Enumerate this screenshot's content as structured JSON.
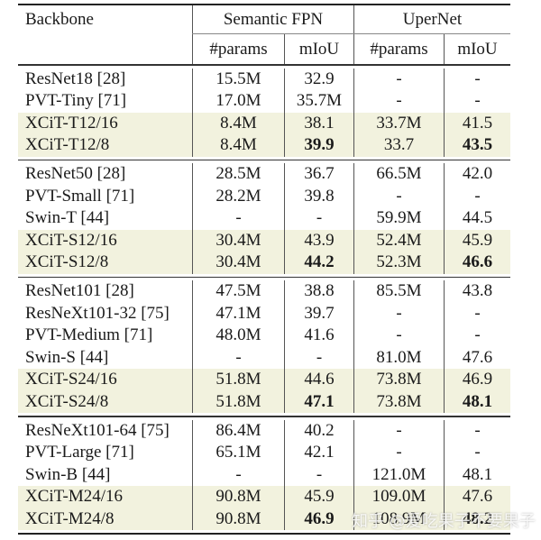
{
  "header": {
    "backbone": "Backbone",
    "group1": "Semantic FPN",
    "group2": "UperNet",
    "sub": [
      "#params",
      "mIoU",
      "#params",
      "mIoU"
    ]
  },
  "sections": [
    [
      {
        "name": "ResNet18 [28]",
        "fpn_params": "15.5M",
        "fpn_miou": "32.9",
        "uper_params": "-",
        "uper_miou": "-",
        "hl": false
      },
      {
        "name": "PVT-Tiny [71]",
        "fpn_params": "17.0M",
        "fpn_miou": "35.7M",
        "uper_params": "-",
        "uper_miou": "-",
        "hl": false
      },
      {
        "name": "XCiT-T12/16",
        "fpn_params": "8.4M",
        "fpn_miou": "38.1",
        "uper_params": "33.7M",
        "uper_miou": "41.5",
        "hl": true
      },
      {
        "name": "XCiT-T12/8",
        "fpn_params": "8.4M",
        "fpn_miou": "39.9",
        "uper_params": "33.7",
        "uper_miou": "43.5",
        "hl": true,
        "bold_fpn": true,
        "bold_uper": true
      }
    ],
    [
      {
        "name": "ResNet50 [28]",
        "fpn_params": "28.5M",
        "fpn_miou": "36.7",
        "uper_params": "66.5M",
        "uper_miou": "42.0",
        "hl": false
      },
      {
        "name": "PVT-Small [71]",
        "fpn_params": "28.2M",
        "fpn_miou": "39.8",
        "uper_params": "-",
        "uper_miou": "-",
        "hl": false
      },
      {
        "name": "Swin-T [44]",
        "fpn_params": "-",
        "fpn_miou": "-",
        "uper_params": "59.9M",
        "uper_miou": "44.5",
        "hl": false
      },
      {
        "name": "XCiT-S12/16",
        "fpn_params": "30.4M",
        "fpn_miou": "43.9",
        "uper_params": "52.4M",
        "uper_miou": "45.9",
        "hl": true
      },
      {
        "name": "XCiT-S12/8",
        "fpn_params": "30.4M",
        "fpn_miou": "44.2",
        "uper_params": "52.3M",
        "uper_miou": "46.6",
        "hl": true,
        "bold_fpn": true,
        "bold_uper": true
      }
    ],
    [
      {
        "name": "ResNet101 [28]",
        "fpn_params": "47.5M",
        "fpn_miou": "38.8",
        "uper_params": "85.5M",
        "uper_miou": "43.8",
        "hl": false
      },
      {
        "name": "ResNeXt101-32 [75]",
        "fpn_params": "47.1M",
        "fpn_miou": "39.7",
        "uper_params": "-",
        "uper_miou": "-",
        "hl": false
      },
      {
        "name": "PVT-Medium [71]",
        "fpn_params": "48.0M",
        "fpn_miou": "41.6",
        "uper_params": "-",
        "uper_miou": "-",
        "hl": false
      },
      {
        "name": "Swin-S [44]",
        "fpn_params": "-",
        "fpn_miou": "-",
        "uper_params": "81.0M",
        "uper_miou": "47.6",
        "hl": false
      },
      {
        "name": "XCiT-S24/16",
        "fpn_params": "51.8M",
        "fpn_miou": "44.6",
        "uper_params": "73.8M",
        "uper_miou": "46.9",
        "hl": true
      },
      {
        "name": "XCiT-S24/8",
        "fpn_params": "51.8M",
        "fpn_miou": "47.1",
        "uper_params": "73.8M",
        "uper_miou": "48.1",
        "hl": true,
        "bold_fpn": true,
        "bold_uper": true
      }
    ],
    [
      {
        "name": "ResNeXt101-64 [75]",
        "fpn_params": "86.4M",
        "fpn_miou": "40.2",
        "uper_params": "-",
        "uper_miou": "-",
        "hl": false
      },
      {
        "name": "PVT-Large [71]",
        "fpn_params": "65.1M",
        "fpn_miou": "42.1",
        "uper_params": "-",
        "uper_miou": "-",
        "hl": false
      },
      {
        "name": "Swin-B [44]",
        "fpn_params": "-",
        "fpn_miou": "-",
        "uper_params": "121.0M",
        "uper_miou": "48.1",
        "hl": false
      },
      {
        "name": "XCiT-M24/16",
        "fpn_params": "90.8M",
        "fpn_miou": "45.9",
        "uper_params": "109.0M",
        "uper_miou": "47.6",
        "hl": true
      },
      {
        "name": "XCiT-M24/8",
        "fpn_params": "90.8M",
        "fpn_miou": "46.9",
        "uper_params": "108.9M",
        "uper_miou": "48.2",
        "hl": true,
        "bold_fpn": true,
        "bold_uper": true
      }
    ]
  ],
  "watermark": "知乎 @爱吃果子不要果子",
  "colors": {
    "highlight": "#f2f2de",
    "rule": "#222222"
  }
}
